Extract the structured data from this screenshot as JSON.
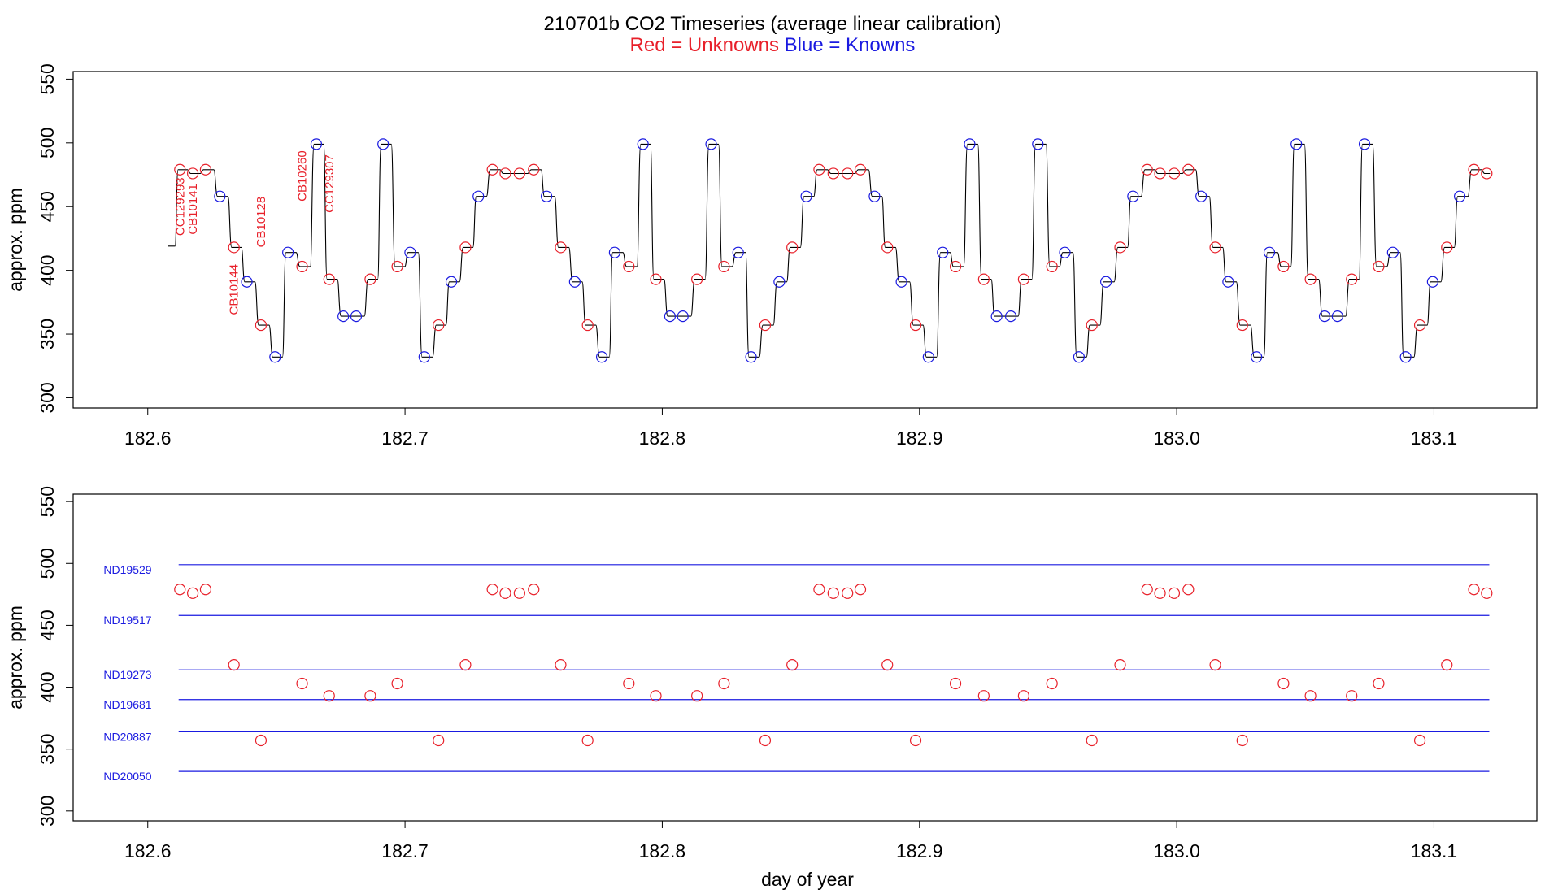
{
  "title": {
    "main": "210701b   CO2 Timeseries (average linear calibration)",
    "sub_red": "Red = Unknowns",
    "sub_blue": "Blue = Knowns"
  },
  "colors": {
    "unknown": "#e8202a",
    "known": "#1a1ae0",
    "trace": "#000000"
  },
  "chart_data": [
    {
      "type": "line",
      "name": "top-panel",
      "ylabel": "approx. ppm",
      "xlabel": "",
      "xlim": [
        182.571,
        183.14
      ],
      "ylim": [
        292,
        556
      ],
      "xticks": [
        182.6,
        182.7,
        182.8,
        182.9,
        183.0,
        183.1
      ],
      "xtick_labels": [
        "182.6",
        "182.7",
        "182.8",
        "182.9",
        "183.0",
        "183.1"
      ],
      "yticks": [
        300,
        350,
        400,
        450,
        500,
        550
      ],
      "ytick_labels": [
        "300",
        "350",
        "400",
        "450",
        "500",
        "550"
      ],
      "trace_start": [
        182.608,
        419
      ],
      "points": [
        {
          "x": 182.6125,
          "y": 479,
          "kind": "unknown"
        },
        {
          "x": 182.6175,
          "y": 476,
          "kind": "unknown"
        },
        {
          "x": 182.6225,
          "y": 479,
          "kind": "unknown"
        },
        {
          "x": 182.628,
          "y": 458,
          "kind": "known"
        },
        {
          "x": 182.6335,
          "y": 418,
          "kind": "unknown"
        },
        {
          "x": 182.6385,
          "y": 391,
          "kind": "known"
        },
        {
          "x": 182.644,
          "y": 357,
          "kind": "unknown"
        },
        {
          "x": 182.6495,
          "y": 332,
          "kind": "known"
        },
        {
          "x": 182.6545,
          "y": 414,
          "kind": "known"
        },
        {
          "x": 182.66,
          "y": 403,
          "kind": "unknown"
        },
        {
          "x": 182.6655,
          "y": 499,
          "kind": "known"
        },
        {
          "x": 182.6705,
          "y": 393,
          "kind": "unknown"
        },
        {
          "x": 182.676,
          "y": 364,
          "kind": "known"
        },
        {
          "x": 182.681,
          "y": 364,
          "kind": "known"
        },
        {
          "x": 182.6865,
          "y": 393,
          "kind": "unknown"
        },
        {
          "x": 182.6915,
          "y": 499,
          "kind": "known"
        },
        {
          "x": 182.697,
          "y": 403,
          "kind": "unknown"
        },
        {
          "x": 182.702,
          "y": 414,
          "kind": "known"
        },
        {
          "x": 182.7075,
          "y": 332,
          "kind": "known"
        },
        {
          "x": 182.713,
          "y": 357,
          "kind": "unknown"
        },
        {
          "x": 182.718,
          "y": 391,
          "kind": "known"
        },
        {
          "x": 182.7235,
          "y": 418,
          "kind": "unknown"
        },
        {
          "x": 182.7285,
          "y": 458,
          "kind": "known"
        },
        {
          "x": 182.734,
          "y": 479,
          "kind": "unknown"
        },
        {
          "x": 182.739,
          "y": 476,
          "kind": "unknown"
        },
        {
          "x": 182.7445,
          "y": 476,
          "kind": "unknown"
        },
        {
          "x": 182.75,
          "y": 479,
          "kind": "unknown"
        },
        {
          "x": 182.755,
          "y": 458,
          "kind": "known"
        },
        {
          "x": 182.7605,
          "y": 418,
          "kind": "unknown"
        },
        {
          "x": 182.766,
          "y": 391,
          "kind": "known"
        },
        {
          "x": 182.771,
          "y": 357,
          "kind": "unknown"
        },
        {
          "x": 182.7765,
          "y": 332,
          "kind": "known"
        },
        {
          "x": 182.7815,
          "y": 414,
          "kind": "known"
        },
        {
          "x": 182.787,
          "y": 403,
          "kind": "unknown"
        },
        {
          "x": 182.7925,
          "y": 499,
          "kind": "known"
        },
        {
          "x": 182.7975,
          "y": 393,
          "kind": "unknown"
        },
        {
          "x": 182.803,
          "y": 364,
          "kind": "known"
        },
        {
          "x": 182.808,
          "y": 364,
          "kind": "known"
        },
        {
          "x": 182.8135,
          "y": 393,
          "kind": "unknown"
        },
        {
          "x": 182.819,
          "y": 499,
          "kind": "known"
        },
        {
          "x": 182.824,
          "y": 403,
          "kind": "unknown"
        },
        {
          "x": 182.8295,
          "y": 414,
          "kind": "known"
        },
        {
          "x": 182.8345,
          "y": 332,
          "kind": "known"
        },
        {
          "x": 182.84,
          "y": 357,
          "kind": "unknown"
        },
        {
          "x": 182.8455,
          "y": 391,
          "kind": "known"
        },
        {
          "x": 182.8505,
          "y": 418,
          "kind": "unknown"
        },
        {
          "x": 182.856,
          "y": 458,
          "kind": "known"
        },
        {
          "x": 182.861,
          "y": 479,
          "kind": "unknown"
        },
        {
          "x": 182.8665,
          "y": 476,
          "kind": "unknown"
        },
        {
          "x": 182.872,
          "y": 476,
          "kind": "unknown"
        },
        {
          "x": 182.877,
          "y": 479,
          "kind": "unknown"
        },
        {
          "x": 182.8825,
          "y": 458,
          "kind": "known"
        },
        {
          "x": 182.8875,
          "y": 418,
          "kind": "unknown"
        },
        {
          "x": 182.893,
          "y": 391,
          "kind": "known"
        },
        {
          "x": 182.8985,
          "y": 357,
          "kind": "unknown"
        },
        {
          "x": 182.9035,
          "y": 332,
          "kind": "known"
        },
        {
          "x": 182.909,
          "y": 414,
          "kind": "known"
        },
        {
          "x": 182.914,
          "y": 403,
          "kind": "unknown"
        },
        {
          "x": 182.9195,
          "y": 499,
          "kind": "known"
        },
        {
          "x": 182.925,
          "y": 393,
          "kind": "unknown"
        },
        {
          "x": 182.93,
          "y": 364,
          "kind": "known"
        },
        {
          "x": 182.9355,
          "y": 364,
          "kind": "known"
        },
        {
          "x": 182.9405,
          "y": 393,
          "kind": "unknown"
        },
        {
          "x": 182.946,
          "y": 499,
          "kind": "known"
        },
        {
          "x": 182.9515,
          "y": 403,
          "kind": "unknown"
        },
        {
          "x": 182.9565,
          "y": 414,
          "kind": "known"
        },
        {
          "x": 182.962,
          "y": 332,
          "kind": "known"
        },
        {
          "x": 182.967,
          "y": 357,
          "kind": "unknown"
        },
        {
          "x": 182.9725,
          "y": 391,
          "kind": "known"
        },
        {
          "x": 182.978,
          "y": 418,
          "kind": "unknown"
        },
        {
          "x": 182.983,
          "y": 458,
          "kind": "known"
        },
        {
          "x": 182.9885,
          "y": 479,
          "kind": "unknown"
        },
        {
          "x": 182.9935,
          "y": 476,
          "kind": "unknown"
        },
        {
          "x": 182.999,
          "y": 476,
          "kind": "unknown"
        },
        {
          "x": 183.0045,
          "y": 479,
          "kind": "unknown"
        },
        {
          "x": 183.0095,
          "y": 458,
          "kind": "known"
        },
        {
          "x": 183.015,
          "y": 418,
          "kind": "unknown"
        },
        {
          "x": 183.02,
          "y": 391,
          "kind": "known"
        },
        {
          "x": 183.0255,
          "y": 357,
          "kind": "unknown"
        },
        {
          "x": 183.031,
          "y": 332,
          "kind": "known"
        },
        {
          "x": 183.036,
          "y": 414,
          "kind": "known"
        },
        {
          "x": 183.0415,
          "y": 403,
          "kind": "unknown"
        },
        {
          "x": 183.0465,
          "y": 499,
          "kind": "known"
        },
        {
          "x": 183.052,
          "y": 393,
          "kind": "unknown"
        },
        {
          "x": 183.0575,
          "y": 364,
          "kind": "known"
        },
        {
          "x": 183.0625,
          "y": 364,
          "kind": "known"
        },
        {
          "x": 183.068,
          "y": 393,
          "kind": "unknown"
        },
        {
          "x": 183.073,
          "y": 499,
          "kind": "known"
        },
        {
          "x": 183.0785,
          "y": 403,
          "kind": "unknown"
        },
        {
          "x": 183.084,
          "y": 414,
          "kind": "known"
        },
        {
          "x": 183.089,
          "y": 332,
          "kind": "known"
        },
        {
          "x": 183.0945,
          "y": 357,
          "kind": "unknown"
        },
        {
          "x": 183.0995,
          "y": 391,
          "kind": "known"
        },
        {
          "x": 183.105,
          "y": 418,
          "kind": "unknown"
        },
        {
          "x": 183.11,
          "y": 458,
          "kind": "known"
        },
        {
          "x": 183.1155,
          "y": 479,
          "kind": "unknown"
        },
        {
          "x": 183.1205,
          "y": 476,
          "kind": "unknown"
        }
      ],
      "annotations": [
        {
          "text": "CC129293",
          "x": 182.6125,
          "y": 450
        },
        {
          "text": "CB10141",
          "x": 182.6175,
          "y": 448
        },
        {
          "text": "CB10144",
          "x": 182.6335,
          "y": 385
        },
        {
          "text": "CB10128",
          "x": 182.644,
          "y": 438
        },
        {
          "text": "CB10260",
          "x": 182.66,
          "y": 474
        },
        {
          "text": "CC129307",
          "x": 182.6705,
          "y": 468
        }
      ]
    },
    {
      "type": "scatter",
      "name": "bottom-panel",
      "ylabel": "approx. ppm",
      "xlabel": "day of year",
      "xlim": [
        182.571,
        183.14
      ],
      "ylim": [
        292,
        556
      ],
      "xticks": [
        182.6,
        182.7,
        182.8,
        182.9,
        183.0,
        183.1
      ],
      "xtick_labels": [
        "182.6",
        "182.7",
        "182.8",
        "182.9",
        "183.0",
        "183.1"
      ],
      "yticks": [
        300,
        350,
        400,
        450,
        500,
        550
      ],
      "ytick_labels": [
        "300",
        "350",
        "400",
        "450",
        "500",
        "550"
      ],
      "reference_lines": [
        {
          "label": "ND19529",
          "y": 499
        },
        {
          "label": "ND19517",
          "y": 458
        },
        {
          "label": "ND19273",
          "y": 414
        },
        {
          "label": "ND19681",
          "y": 390
        },
        {
          "label": "ND20887",
          "y": 364
        },
        {
          "label": "ND20050",
          "y": 332
        }
      ],
      "reference_x_range": [
        182.612,
        183.1215
      ],
      "x": [
        182.6125,
        182.6175,
        182.6225,
        182.6335,
        182.644,
        182.66,
        182.6705,
        182.6865,
        182.697,
        182.713,
        182.7235,
        182.734,
        182.739,
        182.7445,
        182.75,
        182.7605,
        182.771,
        182.787,
        182.7975,
        182.8135,
        182.824,
        182.84,
        182.8505,
        182.861,
        182.8665,
        182.872,
        182.877,
        182.8875,
        182.8985,
        182.914,
        182.925,
        182.9405,
        182.9515,
        182.967,
        182.978,
        182.9885,
        182.9935,
        182.999,
        183.0045,
        183.015,
        183.0255,
        183.0415,
        183.052,
        183.068,
        183.0785,
        183.0945,
        183.105,
        183.1155,
        183.1205
      ],
      "y": [
        479,
        476,
        479,
        418,
        357,
        403,
        393,
        393,
        403,
        357,
        418,
        479,
        476,
        476,
        479,
        418,
        357,
        403,
        393,
        393,
        403,
        357,
        418,
        479,
        476,
        476,
        479,
        418,
        357,
        403,
        393,
        393,
        403,
        357,
        418,
        479,
        476,
        476,
        479,
        418,
        357,
        403,
        393,
        393,
        403,
        357,
        418,
        479,
        476
      ]
    }
  ]
}
